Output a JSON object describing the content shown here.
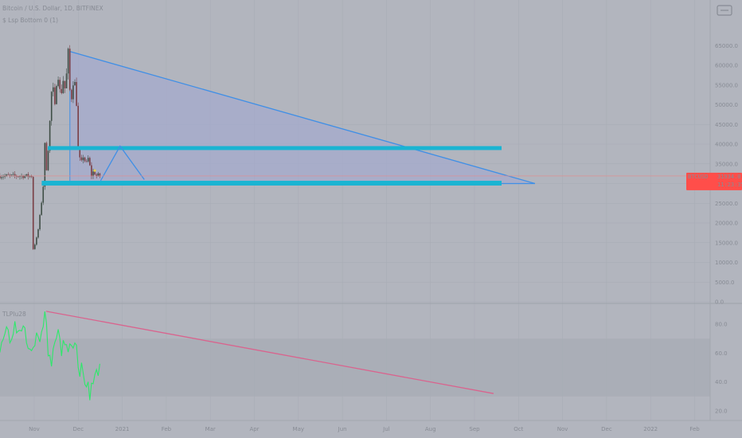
{
  "header": {
    "symbol_line": "Bitcoin / U.S. Dollar, 1D, BITFINEX",
    "indicator_line": "$ Lsp Bottom 0 (1)",
    "oscillator_line": "TLPIu28"
  },
  "price_badge": {
    "ticker": "BTCUSD",
    "price": "31934.0",
    "countdown": "11:23:35"
  },
  "colors": {
    "background": "#b2b5be",
    "grid": "#a7abb4",
    "up_candle": "#3f4e46",
    "down_candle": "#7a3e45",
    "pattern_stroke": "#3f8fe6",
    "pattern_fill": "#a4a9cd",
    "zone": "#1ab4d2",
    "rsi_line": "#2ee86b",
    "trendline": "#d9648e",
    "price_badge": "#ff4e4a",
    "marker": "#e8d14a"
  },
  "chart_data": [
    {
      "type": "candlestick",
      "title": "",
      "y_ticks": [
        "45000.0",
        "40000.0",
        "35000.0",
        "30000.0",
        "25000.0",
        "20000.0",
        "15000.0",
        "10000.0",
        "5000.0",
        "0.0"
      ],
      "x_ticks": [
        "Nov",
        "Dec",
        "2021",
        "Feb",
        "Mar",
        "Apr",
        "May",
        "Jun",
        "Jul",
        "Aug",
        "Sep",
        "Oct",
        "Nov",
        "Dec",
        "2022",
        "Feb"
      ],
      "ylim": [
        0,
        70000
      ],
      "last_price": 31934,
      "trend_path": [
        [
          0,
          13000
        ],
        [
          0.08,
          15500
        ],
        [
          0.13,
          18500
        ],
        [
          0.18,
          23000
        ],
        [
          0.24,
          29000
        ],
        [
          0.28,
          40000
        ],
        [
          0.31,
          33000
        ],
        [
          0.35,
          38000
        ],
        [
          0.4,
          47000
        ],
        [
          0.45,
          57000
        ],
        [
          0.5,
          48000
        ],
        [
          0.53,
          55000
        ],
        [
          0.58,
          57500
        ],
        [
          0.64,
          51500
        ],
        [
          0.69,
          57000
        ],
        [
          0.72,
          53000
        ],
        [
          0.77,
          57500
        ],
        [
          0.81,
          63500
        ],
        [
          0.84,
          55000
        ],
        [
          0.87,
          49000
        ],
        [
          0.91,
          57000
        ],
        [
          0.94,
          54000
        ],
        [
          0.97,
          56000
        ],
        [
          1.0,
          50000
        ],
        [
          1.04,
          37000
        ],
        [
          1.08,
          36000
        ],
        [
          1.13,
          35000
        ],
        [
          1.16,
          38000
        ],
        [
          1.21,
          34000
        ],
        [
          1.25,
          37000
        ],
        [
          1.29,
          35000
        ],
        [
          1.34,
          32000
        ],
        [
          1.4,
          33500
        ],
        [
          1.44,
          31000
        ],
        [
          1.46,
          32500
        ],
        [
          1.5,
          31934
        ]
      ],
      "pattern": {
        "type": "descending triangle",
        "apex_price": 63500,
        "resistance_zone": [
          38500,
          39500
        ],
        "support_zone": [
          29500,
          30700
        ],
        "triangle_end_price": 30000,
        "projection": [
          31000,
          39500,
          31000
        ]
      }
    },
    {
      "type": "line",
      "title": "",
      "y_ticks": [
        "80.0",
        "60.0",
        "40.0",
        "20.0"
      ],
      "ylim": [
        15,
        95
      ],
      "band": [
        30,
        70
      ],
      "trendline": [
        89,
        32
      ],
      "last_value": 50
    }
  ]
}
